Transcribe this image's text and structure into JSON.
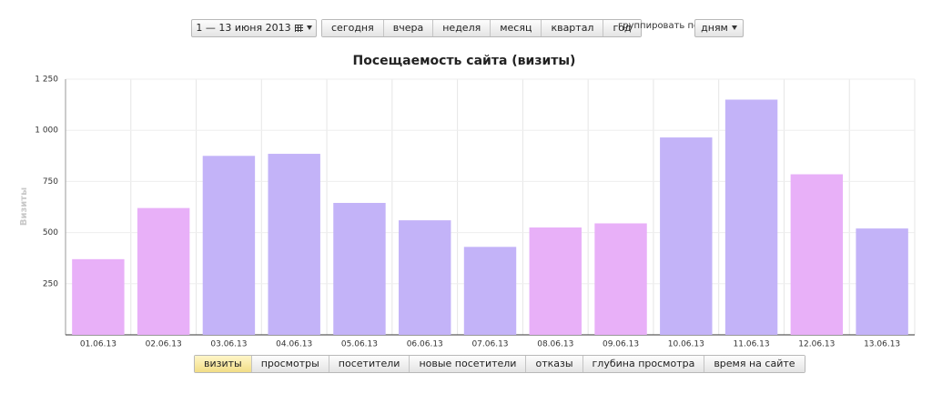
{
  "toolbar": {
    "date_range": "1 — 13 июня 2013",
    "periods": [
      "сегодня",
      "вчера",
      "неделя",
      "месяц",
      "квартал",
      "год"
    ],
    "group_label": "группировать по",
    "group_value": "дням"
  },
  "chart_data": {
    "type": "bar",
    "title": "Посещаемость сайта (визиты)",
    "y_label": "Визиты",
    "categories": [
      "01.06.13",
      "02.06.13",
      "03.06.13",
      "04.06.13",
      "05.06.13",
      "06.06.13",
      "07.06.13",
      "08.06.13",
      "09.06.13",
      "10.06.13",
      "11.06.13",
      "12.06.13",
      "13.06.13"
    ],
    "values": [
      370,
      620,
      875,
      885,
      645,
      560,
      430,
      525,
      545,
      965,
      1150,
      785,
      520
    ],
    "colors": [
      "#e8b0f8",
      "#e8b0f8",
      "#c3b3f8",
      "#c3b3f8",
      "#c3b3f8",
      "#c3b3f8",
      "#c3b3f8",
      "#e8b0f8",
      "#e8b0f8",
      "#c3b3f8",
      "#c3b3f8",
      "#e8b0f8",
      "#c3b3f8"
    ],
    "ylim": [
      0,
      1250
    ],
    "yticks": [
      250,
      500,
      750,
      {
        "value": 1000,
        "label": "1 000"
      },
      {
        "value": 1250,
        "label": "1 250"
      }
    ],
    "grid": true
  },
  "tabs": [
    "визиты",
    "просмотры",
    "посетители",
    "новые посетители",
    "отказы",
    "глубина просмотра",
    "время на сайте"
  ]
}
